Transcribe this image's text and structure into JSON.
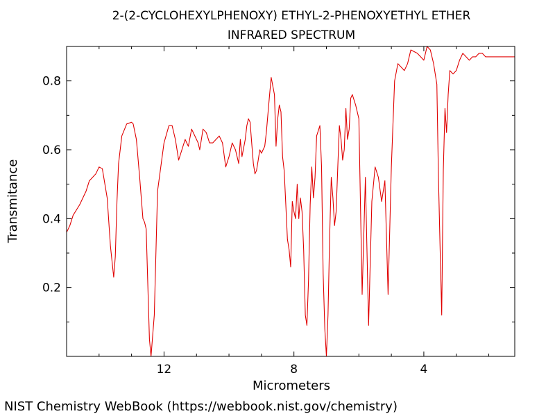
{
  "footer": {
    "credit": "NIST Chemistry WebBook (https://webbook.nist.gov/chemistry)"
  },
  "chart_data": {
    "type": "line",
    "title_lines": [
      "2-(2-CYCLOHEXYLPHENOXY) ETHYL-2-PHENOXYETHYL ETHER",
      "INFRARED SPECTRUM"
    ],
    "xlabel": "Micrometers",
    "ylabel": "Transmitance",
    "x_reversed": true,
    "xlim": [
      15.0,
      1.2
    ],
    "ylim": [
      0.0,
      0.9
    ],
    "xticks_major": [
      12,
      8,
      4
    ],
    "xticks_minor": [
      15,
      14,
      13,
      11,
      10,
      9,
      7,
      6,
      5,
      3,
      2
    ],
    "yticks_major": [
      0.2,
      0.4,
      0.6,
      0.8
    ],
    "yticks_minor": [
      0.1,
      0.3,
      0.5,
      0.7
    ],
    "grid": false,
    "line_color": "#e00000",
    "series": [
      {
        "x": [
          15.0,
          14.9,
          14.8,
          14.6,
          14.4,
          14.3,
          14.1,
          14.0,
          13.9,
          13.75,
          13.65,
          13.55,
          13.5,
          13.45,
          13.4,
          13.3,
          13.15,
          13.0,
          12.95,
          12.85,
          12.75,
          12.65,
          12.6,
          12.55,
          12.45,
          12.4,
          12.3,
          12.2,
          12.0,
          11.85,
          11.75,
          11.65,
          11.55,
          11.45,
          11.35,
          11.3,
          11.25,
          11.15,
          11.05,
          10.95,
          10.9,
          10.85,
          10.8,
          10.7,
          10.6,
          10.5,
          10.4,
          10.3,
          10.2,
          10.1,
          10.0,
          9.9,
          9.8,
          9.7,
          9.65,
          9.6,
          9.5,
          9.45,
          9.4,
          9.35,
          9.3,
          9.25,
          9.2,
          9.15,
          9.1,
          9.05,
          9.0,
          8.95,
          8.9,
          8.85,
          8.75,
          8.7,
          8.6,
          8.55,
          8.5,
          8.45,
          8.4,
          8.35,
          8.3,
          8.25,
          8.2,
          8.15,
          8.1,
          8.05,
          8.0,
          7.95,
          7.9,
          7.85,
          7.8,
          7.75,
          7.7,
          7.65,
          7.6,
          7.55,
          7.5,
          7.45,
          7.4,
          7.35,
          7.3,
          7.2,
          7.15,
          7.1,
          7.05,
          7.0,
          6.95,
          6.9,
          6.85,
          6.8,
          6.75,
          6.7,
          6.65,
          6.6,
          6.55,
          6.5,
          6.45,
          6.4,
          6.35,
          6.3,
          6.25,
          6.2,
          6.1,
          6.0,
          5.9,
          5.8,
          5.7,
          5.6,
          5.5,
          5.4,
          5.3,
          5.2,
          5.1,
          5.0,
          4.9,
          4.8,
          4.7,
          4.6,
          4.5,
          4.4,
          4.2,
          4.0,
          3.9,
          3.8,
          3.7,
          3.6,
          3.55,
          3.5,
          3.45,
          3.4,
          3.35,
          3.3,
          3.25,
          3.2,
          3.1,
          3.0,
          2.9,
          2.8,
          2.7,
          2.6,
          2.5,
          2.4,
          2.3,
          2.2,
          2.1,
          2.0,
          1.9,
          1.8,
          1.7,
          1.6,
          1.5,
          1.4,
          1.3,
          1.2
        ],
        "y": [
          0.36,
          0.38,
          0.41,
          0.44,
          0.48,
          0.51,
          0.53,
          0.55,
          0.545,
          0.46,
          0.32,
          0.23,
          0.29,
          0.45,
          0.56,
          0.64,
          0.675,
          0.68,
          0.675,
          0.63,
          0.52,
          0.4,
          0.39,
          0.37,
          0.05,
          0.0,
          0.12,
          0.48,
          0.62,
          0.67,
          0.67,
          0.63,
          0.57,
          0.6,
          0.63,
          0.62,
          0.61,
          0.66,
          0.64,
          0.62,
          0.6,
          0.63,
          0.66,
          0.65,
          0.62,
          0.62,
          0.63,
          0.64,
          0.62,
          0.55,
          0.58,
          0.62,
          0.6,
          0.56,
          0.63,
          0.58,
          0.63,
          0.67,
          0.69,
          0.68,
          0.62,
          0.56,
          0.53,
          0.54,
          0.57,
          0.6,
          0.59,
          0.6,
          0.61,
          0.65,
          0.76,
          0.81,
          0.76,
          0.61,
          0.69,
          0.73,
          0.71,
          0.58,
          0.54,
          0.44,
          0.34,
          0.31,
          0.26,
          0.45,
          0.42,
          0.4,
          0.5,
          0.4,
          0.46,
          0.42,
          0.31,
          0.12,
          0.09,
          0.22,
          0.44,
          0.55,
          0.46,
          0.52,
          0.64,
          0.67,
          0.55,
          0.24,
          0.08,
          0.0,
          0.12,
          0.35,
          0.52,
          0.46,
          0.38,
          0.42,
          0.55,
          0.67,
          0.63,
          0.57,
          0.6,
          0.72,
          0.63,
          0.66,
          0.75,
          0.76,
          0.73,
          0.69,
          0.18,
          0.52,
          0.09,
          0.45,
          0.55,
          0.52,
          0.45,
          0.51,
          0.18,
          0.55,
          0.8,
          0.85,
          0.84,
          0.83,
          0.85,
          0.89,
          0.88,
          0.86,
          0.9,
          0.89,
          0.85,
          0.79,
          0.52,
          0.32,
          0.12,
          0.54,
          0.72,
          0.65,
          0.76,
          0.83,
          0.82,
          0.83,
          0.86,
          0.88,
          0.87,
          0.86,
          0.87,
          0.87,
          0.88,
          0.88,
          0.87,
          0.87,
          0.87,
          0.87,
          0.87,
          0.87,
          0.87,
          0.87,
          0.87,
          0.87
        ]
      }
    ]
  }
}
